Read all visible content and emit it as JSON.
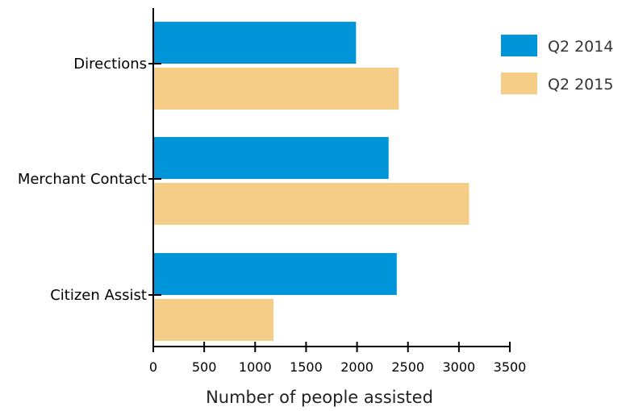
{
  "chart_data": {
    "type": "bar",
    "orientation": "horizontal",
    "categories": [
      "Directions",
      "Merchant Contact",
      "Citizen Assist"
    ],
    "series": [
      {
        "name": "Q2 2014",
        "color": "#0095d9",
        "values": [
          1990,
          2310,
          2390
        ]
      },
      {
        "name": "Q2 2015",
        "color": "#f6cd86",
        "values": [
          2410,
          3100,
          1180
        ]
      }
    ],
    "xlabel": "Number of people assisted",
    "ylabel": "",
    "xlim": [
      0,
      3500
    ],
    "x_ticks": [
      0,
      500,
      1000,
      1500,
      2000,
      2500,
      3000,
      3500
    ],
    "grid": false,
    "legend_position": "top-right"
  }
}
